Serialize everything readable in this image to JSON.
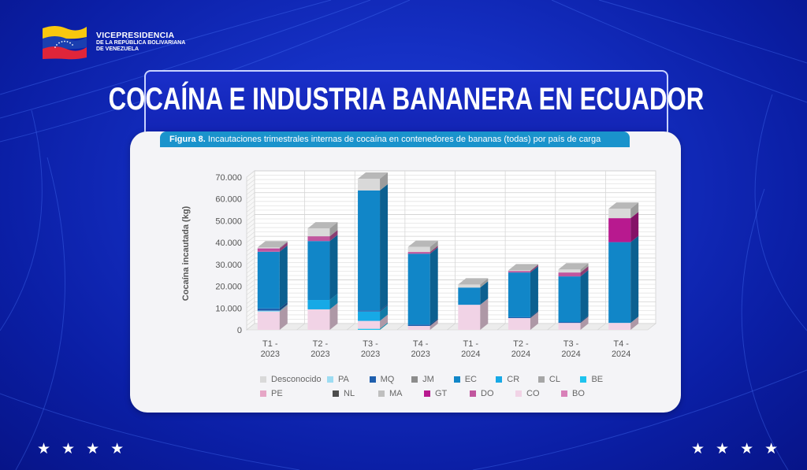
{
  "header": {
    "org_line1": "VICEPRESIDENCIA",
    "org_line2": "DE LA REPÚBLICA BOLIVARIANA",
    "org_line3": "DE VENEZUELA",
    "title": "Cocaína e industria bananera en Ecuador"
  },
  "figure": {
    "label": "Figura 8.",
    "caption": " Incautaciones trimestrales internas de cocaína en contenedores de bananas (todas) por país de carga"
  },
  "footer": {
    "stars": [
      "★",
      "★",
      "★",
      "★"
    ]
  },
  "colors": {
    "Desconocido": "#d9d9d9",
    "PA": "#9ddcf2",
    "MQ": "#1f5fae",
    "JM": "#8c8c8c",
    "EC": "#1186c8",
    "CR": "#17a9e6",
    "CL": "#a6a6a6",
    "BE": "#1ec3ee",
    "PE": "#e6a6c6",
    "NL": "#4d4d4d",
    "MA": "#bfbfbf",
    "GT": "#b8198f",
    "DO": "#c1569e",
    "CO": "#f1d3e6",
    "BO": "#d880b8"
  },
  "chart_data": {
    "type": "bar",
    "stacked": true,
    "style": "3d-column",
    "title": "",
    "xlabel": "",
    "ylabel": "Cocaína incautada (kg)",
    "ylim": [
      0,
      70000
    ],
    "yticks": [
      0,
      10000,
      20000,
      30000,
      40000,
      50000,
      60000,
      70000
    ],
    "ytick_labels": [
      "0",
      "10.000",
      "20.000",
      "30.000",
      "40.000",
      "50.000",
      "60.000",
      "70.000"
    ],
    "grid": true,
    "legend_position": "bottom",
    "categories": [
      "T1 - 2023",
      "T2 - 2023",
      "T3 - 2023",
      "T4 - 2023",
      "T1 - 2024",
      "T2 - 2024",
      "T3 - 2024",
      "T4 - 2024"
    ],
    "legend": [
      "Desconocido",
      "PA",
      "MQ",
      "JM",
      "EC",
      "CR",
      "CL",
      "BE",
      "PE",
      "NL",
      "MA",
      "GT",
      "DO",
      "CO",
      "BO"
    ],
    "stack_order": [
      "BE",
      "CO",
      "PA",
      "CR",
      "MQ",
      "EC",
      "DO",
      "GT",
      "Desconocido"
    ],
    "series": [
      {
        "name": "BE",
        "values": [
          0,
          0,
          500,
          0,
          0,
          0,
          0,
          0
        ]
      },
      {
        "name": "CO",
        "values": [
          8300,
          9400,
          3600,
          1800,
          11500,
          5400,
          3200,
          3200
        ]
      },
      {
        "name": "PA",
        "values": [
          500,
          0,
          0,
          0,
          0,
          0,
          0,
          0
        ]
      },
      {
        "name": "CR",
        "values": [
          0,
          4300,
          4300,
          0,
          0,
          0,
          0,
          0
        ]
      },
      {
        "name": "MQ",
        "values": [
          1000,
          0,
          500,
          600,
          0,
          400,
          400,
          0
        ]
      },
      {
        "name": "EC",
        "values": [
          26000,
          27000,
          55000,
          32500,
          7900,
          20500,
          20900,
          37000
        ]
      },
      {
        "name": "DO",
        "values": [
          1200,
          2200,
          0,
          800,
          0,
          700,
          1800,
          0
        ]
      },
      {
        "name": "GT",
        "values": [
          300,
          0,
          0,
          0,
          0,
          0,
          0,
          11000
        ]
      },
      {
        "name": "Desconocido",
        "values": [
          500,
          3600,
          5400,
          2300,
          1400,
          300,
          1400,
          4300
        ]
      }
    ]
  }
}
